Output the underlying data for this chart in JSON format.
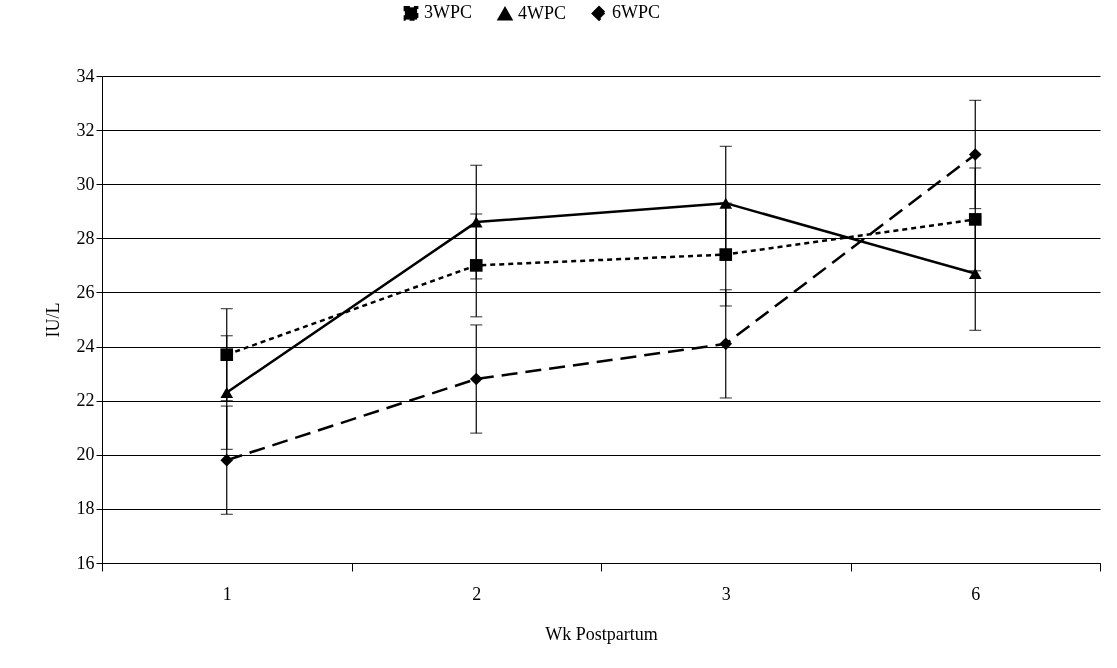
{
  "chart_data": {
    "type": "line",
    "xlabel": "Wk Postpartum",
    "ylabel": "IU/L",
    "categories": [
      "1",
      "2",
      "3",
      "6"
    ],
    "series": [
      {
        "name": "3WPC",
        "color": "#000000",
        "marker": "square",
        "line_style": "dotted",
        "values": [
          23.7,
          27.0,
          27.4,
          28.7
        ],
        "errors": [
          1.7,
          1.9,
          1.9,
          1.9
        ]
      },
      {
        "name": "4WPC",
        "color": "#000000",
        "marker": "triangle",
        "line_style": "solid",
        "values": [
          22.3,
          28.6,
          29.3,
          26.7
        ],
        "errors": [
          2.1,
          2.1,
          2.1,
          2.1
        ]
      },
      {
        "name": "6WPC",
        "color": "#000000",
        "marker": "diamond",
        "line_style": "dashed",
        "values": [
          19.8,
          22.8,
          24.1,
          31.1
        ],
        "errors": [
          2.0,
          2.0,
          2.0,
          2.0
        ]
      }
    ],
    "ylim": [
      16,
      34
    ],
    "yticks": [
      16,
      18,
      20,
      22,
      24,
      26,
      28,
      30,
      32,
      34
    ],
    "grid": "y",
    "legend": "top"
  }
}
